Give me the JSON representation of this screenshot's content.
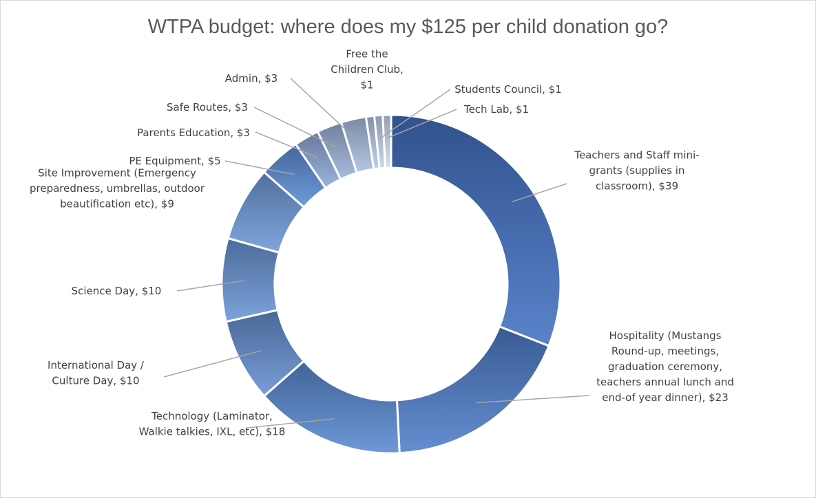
{
  "chart_data": {
    "type": "doughnut",
    "title": "WTPA budget: where does my $125 per child donation go?",
    "slices": [
      {
        "name": "Teachers and Staff mini-grants (supplies in classroom)",
        "value": 39,
        "label_lines": [
          "Teachers and Staff mini-",
          "grants (supplies in",
          "classroom),  $39"
        ]
      },
      {
        "name": "Hospitality (Mustangs Round-up, meetings, graduation ceremony, teachers annual lunch and end-of year dinner)",
        "value": 23,
        "label_lines": [
          "Hospitality (Mustangs",
          "Round-up, meetings,",
          "graduation ceremony,",
          "teachers annual lunch and",
          "end-of year dinner),  $23"
        ]
      },
      {
        "name": "Technology (Laminator, Walkie talkies, IXL, etc)",
        "value": 18,
        "label_lines": [
          "Technology (Laminator,",
          "Walkie talkies, IXL, etc),  $18"
        ]
      },
      {
        "name": "International Day / Culture Day",
        "value": 10,
        "label_lines": [
          "International Day /",
          "Culture Day,  $10"
        ]
      },
      {
        "name": "Science Day",
        "value": 10,
        "label_lines": [
          "Science Day,  $10"
        ]
      },
      {
        "name": "Site Improvement (Emergency preparedness, umbrellas, outdoor beautification etc)",
        "value": 9,
        "label_lines": [
          "Site Improvement (Emergency",
          "preparedness, umbrellas, outdoor",
          "beautification etc),  $9"
        ]
      },
      {
        "name": "PE Equipment",
        "value": 5,
        "label_lines": [
          "PE Equipment,  $5"
        ]
      },
      {
        "name": "Parents Education",
        "value": 3,
        "label_lines": [
          "Parents Education,  $3"
        ]
      },
      {
        "name": "Safe Routes",
        "value": 3,
        "label_lines": [
          "Safe Routes,  $3"
        ]
      },
      {
        "name": "Admin",
        "value": 3,
        "label_lines": [
          "Admin,  $3"
        ]
      },
      {
        "name": "Free the Children Club",
        "value": 1,
        "label_lines": [
          "Free the",
          "Children Club,",
          "$1"
        ]
      },
      {
        "name": "Students Council",
        "value": 1,
        "label_lines": [
          "Students Council,  $1"
        ]
      },
      {
        "name": "Tech Lab",
        "value": 1,
        "label_lines": [
          "Tech Lab,  $1"
        ]
      }
    ],
    "colors": [
      "#4472c4",
      "#4f7fcb",
      "#5a8ad2",
      "#6690d2",
      "#6a96d6",
      "#6f9ad8",
      "#5d8dd6",
      "#8ea9d8",
      "#9db3db",
      "#aabfe2",
      "#b8c9e6",
      "#c5d3ec",
      "#d0dcf0"
    ],
    "legend": "none",
    "data_labels": "outside with leader lines"
  }
}
